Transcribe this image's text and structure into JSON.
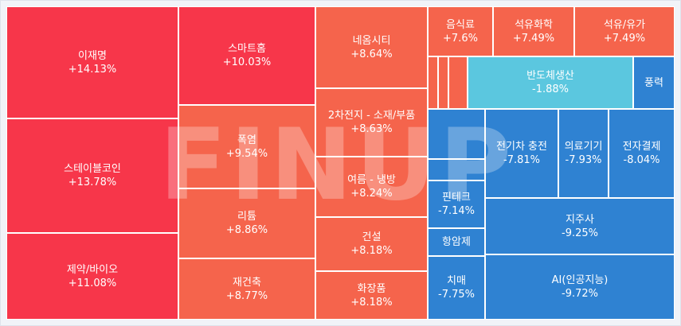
{
  "watermark": "FINUP",
  "colors": {
    "strong_up": "#f7364a",
    "up": "#f5644c",
    "small_down": "#5bc7df",
    "down": "#2f82d2",
    "border": "#ffffff"
  },
  "chart_data": {
    "type": "treemap",
    "unit": "%",
    "items": [
      {
        "name": "이재명",
        "value": 14.13,
        "label": "+14.13%"
      },
      {
        "name": "스테이블코인",
        "value": 13.78,
        "label": "+13.78%"
      },
      {
        "name": "제약/바이오",
        "value": 11.08,
        "label": "+11.08%"
      },
      {
        "name": "스마트홈",
        "value": 10.03,
        "label": "+10.03%"
      },
      {
        "name": "폭염",
        "value": 9.54,
        "label": "+9.54%"
      },
      {
        "name": "리튬",
        "value": 8.86,
        "label": "+8.86%"
      },
      {
        "name": "재건축",
        "value": 8.77,
        "label": "+8.77%"
      },
      {
        "name": "네옴시티",
        "value": 8.64,
        "label": "+8.64%"
      },
      {
        "name": "2차전지 - 소재/부품",
        "value": 8.63,
        "label": "+8.63%"
      },
      {
        "name": "여름 - 냉방",
        "value": 8.24,
        "label": "+8.24%"
      },
      {
        "name": "건설",
        "value": 8.18,
        "label": "+8.18%"
      },
      {
        "name": "화장품",
        "value": 8.18,
        "label": "+8.18%"
      },
      {
        "name": "음식료",
        "value": 7.6,
        "label": "+7.6%"
      },
      {
        "name": "석유화학",
        "value": 7.49,
        "label": "+7.49%"
      },
      {
        "name": "석유/유가",
        "value": 7.49,
        "label": "+7.49%"
      },
      {
        "name": "반도체생산",
        "value": -1.88,
        "label": "-1.88%"
      },
      {
        "name": "풍력",
        "value": null,
        "label": ""
      },
      {
        "name": "전기차 충전",
        "value": -7.81,
        "label": "-7.81%"
      },
      {
        "name": "의료기기",
        "value": -7.93,
        "label": "-7.93%"
      },
      {
        "name": "전자결제",
        "value": -8.04,
        "label": "-8.04%"
      },
      {
        "name": "핀테크",
        "value": -7.14,
        "label": "-7.14%"
      },
      {
        "name": "항암제",
        "value": null,
        "label": ""
      },
      {
        "name": "지주사",
        "value": -9.25,
        "label": "-9.25%"
      },
      {
        "name": "치매",
        "value": -7.75,
        "label": "-7.75%"
      },
      {
        "name": "AI(인공지능)",
        "value": -9.72,
        "label": "-9.72%"
      }
    ]
  }
}
